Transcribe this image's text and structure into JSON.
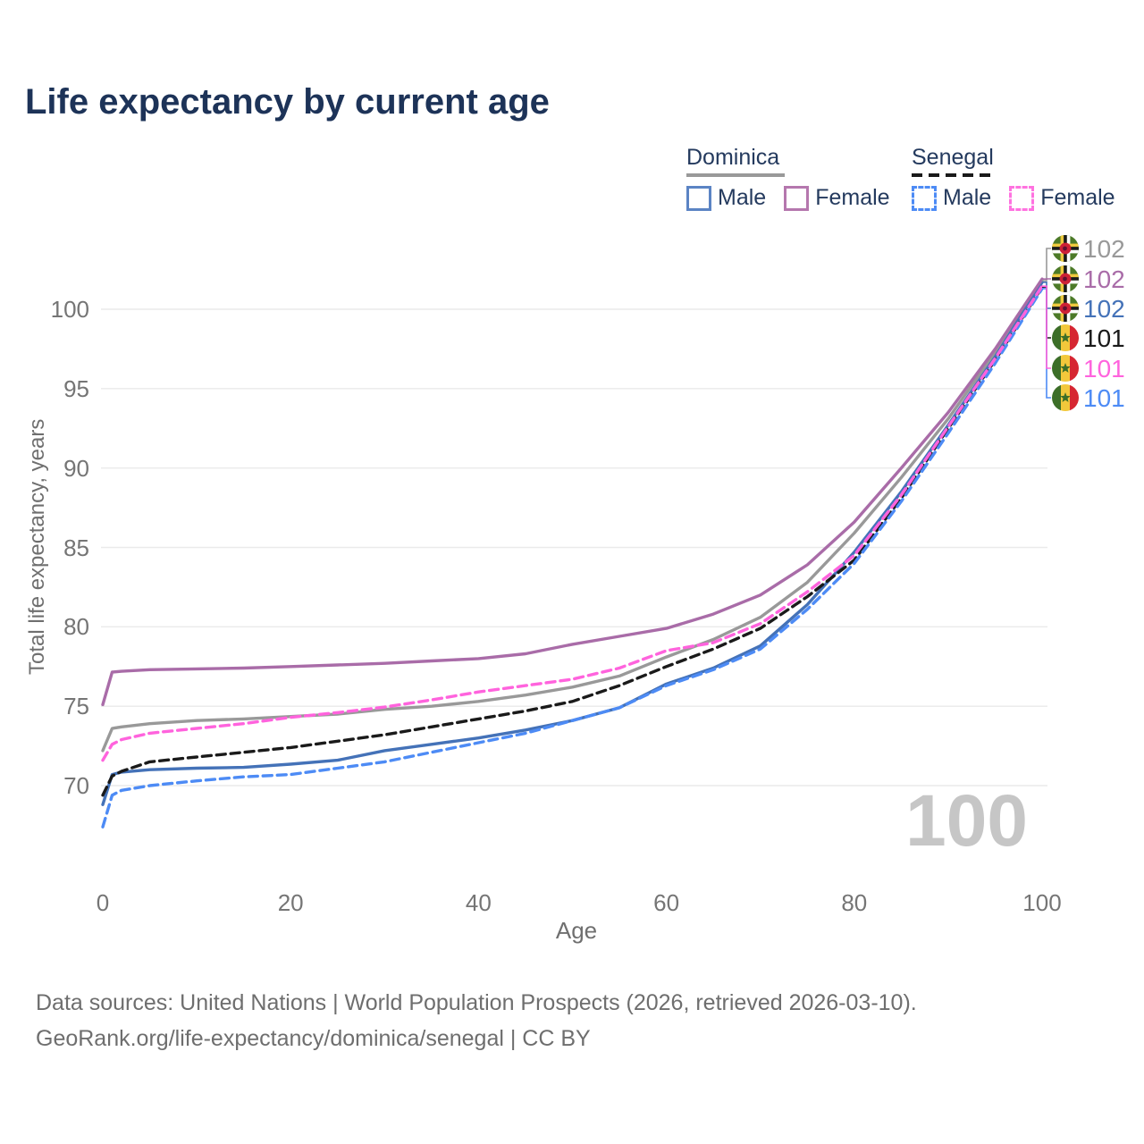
{
  "title": "Life expectancy by current age",
  "watermark_age": "100",
  "legend": {
    "groups": [
      {
        "name": "Dominica",
        "line_style": "solid",
        "line_color": "#999999",
        "items": [
          {
            "label": "Male",
            "color": "#5b84c4",
            "dashed": false
          },
          {
            "label": "Female",
            "color": "#b577ae",
            "dashed": false
          }
        ]
      },
      {
        "name": "Senegal",
        "line_style": "dashed",
        "line_color": "#1a1a1a",
        "items": [
          {
            "label": "Male",
            "color": "#4d8bf5",
            "dashed": true
          },
          {
            "label": "Female",
            "color": "#ff72e0",
            "dashed": true
          }
        ]
      }
    ]
  },
  "chart_data": {
    "type": "line",
    "title": "Life expectancy by current age",
    "xlabel": "Age",
    "ylabel": "Total life expectancy, years",
    "x_ticks": [
      0,
      20,
      40,
      60,
      80,
      100
    ],
    "y_ticks": [
      70,
      75,
      80,
      85,
      90,
      95,
      100
    ],
    "xlim": [
      0,
      100
    ],
    "ylim": [
      66,
      103
    ],
    "grid": true,
    "legend_position": "top-right",
    "x": [
      0,
      1,
      2,
      5,
      10,
      15,
      20,
      25,
      30,
      35,
      40,
      45,
      50,
      55,
      60,
      65,
      70,
      75,
      80,
      85,
      90,
      95,
      100
    ],
    "series": [
      {
        "name": "Dominica Both sexes",
        "country": "Dominica",
        "sex": "All",
        "color": "#999999",
        "dashed": false,
        "end_label": "102",
        "flag": "dominica",
        "label_color": "#999999",
        "values": [
          72.2,
          73.6,
          73.7,
          73.9,
          74.1,
          74.2,
          74.35,
          74.5,
          74.8,
          75.0,
          75.3,
          75.7,
          76.2,
          76.9,
          78.1,
          79.2,
          80.6,
          82.8,
          85.9,
          89.4,
          93.1,
          97.3,
          101.8
        ]
      },
      {
        "name": "Dominica Male",
        "country": "Dominica",
        "sex": "Male",
        "color": "#4472b8",
        "dashed": false,
        "end_label": "102",
        "flag": "dominica",
        "label_color": "#4472b8",
        "values": [
          68.8,
          70.7,
          70.85,
          71.0,
          71.1,
          71.15,
          71.35,
          71.6,
          72.2,
          72.6,
          73.0,
          73.5,
          74.1,
          74.9,
          76.4,
          77.4,
          78.8,
          81.4,
          84.7,
          88.5,
          92.7,
          97.0,
          101.7
        ]
      },
      {
        "name": "Senegal Both sexes",
        "country": "Senegal",
        "sex": "All",
        "color": "#1a1a1a",
        "dashed": true,
        "end_label": "101",
        "flag": "senegal",
        "label_color": "#1a1a1a",
        "values": [
          69.4,
          70.6,
          70.9,
          71.5,
          71.8,
          72.1,
          72.4,
          72.8,
          73.2,
          73.7,
          74.2,
          74.7,
          75.3,
          76.3,
          77.5,
          78.6,
          79.9,
          81.9,
          84.2,
          88.1,
          92.5,
          96.8,
          101.4
        ]
      },
      {
        "name": "Senegal Male",
        "country": "Senegal",
        "sex": "Male",
        "color": "#4d8bf5",
        "dashed": true,
        "end_label": "101",
        "flag": "senegal",
        "label_color": "#4d8bf5",
        "values": [
          67.4,
          69.4,
          69.7,
          70.0,
          70.3,
          70.55,
          70.7,
          71.1,
          71.5,
          72.1,
          72.7,
          73.3,
          74.1,
          74.9,
          76.3,
          77.3,
          78.6,
          81.1,
          84.0,
          87.9,
          92.2,
          96.6,
          101.3
        ]
      },
      {
        "name": "Senegal Female",
        "country": "Senegal",
        "sex": "Female",
        "color": "#ff63dd",
        "dashed": true,
        "end_label": "101",
        "flag": "senegal",
        "label_color": "#ff63dd",
        "values": [
          71.6,
          72.6,
          72.9,
          73.3,
          73.6,
          73.9,
          74.3,
          74.6,
          74.95,
          75.4,
          75.9,
          76.3,
          76.7,
          77.4,
          78.5,
          79.0,
          80.2,
          82.2,
          84.5,
          88.3,
          92.6,
          96.9,
          101.45
        ]
      },
      {
        "name": "Dominica Female",
        "country": "Dominica",
        "sex": "Female",
        "color": "#a96ca8",
        "dashed": false,
        "end_label": "102",
        "flag": "dominica",
        "label_color": "#a96ca8",
        "values": [
          75.1,
          77.15,
          77.2,
          77.3,
          77.35,
          77.4,
          77.5,
          77.6,
          77.7,
          77.85,
          78.0,
          78.3,
          78.9,
          79.4,
          79.9,
          80.8,
          82.0,
          83.9,
          86.6,
          90.0,
          93.5,
          97.5,
          101.9
        ]
      }
    ],
    "end_label_order": [
      "Dominica Both sexes",
      "Dominica Female",
      "Dominica Male",
      "Senegal Both sexes",
      "Senegal Female",
      "Senegal Male"
    ]
  },
  "footer": {
    "line1": "Data sources: United Nations | World Population Prospects (2026, retrieved 2026-03-10).",
    "line2": "GeoRank.org/life-expectancy/dominica/senegal | CC BY"
  }
}
